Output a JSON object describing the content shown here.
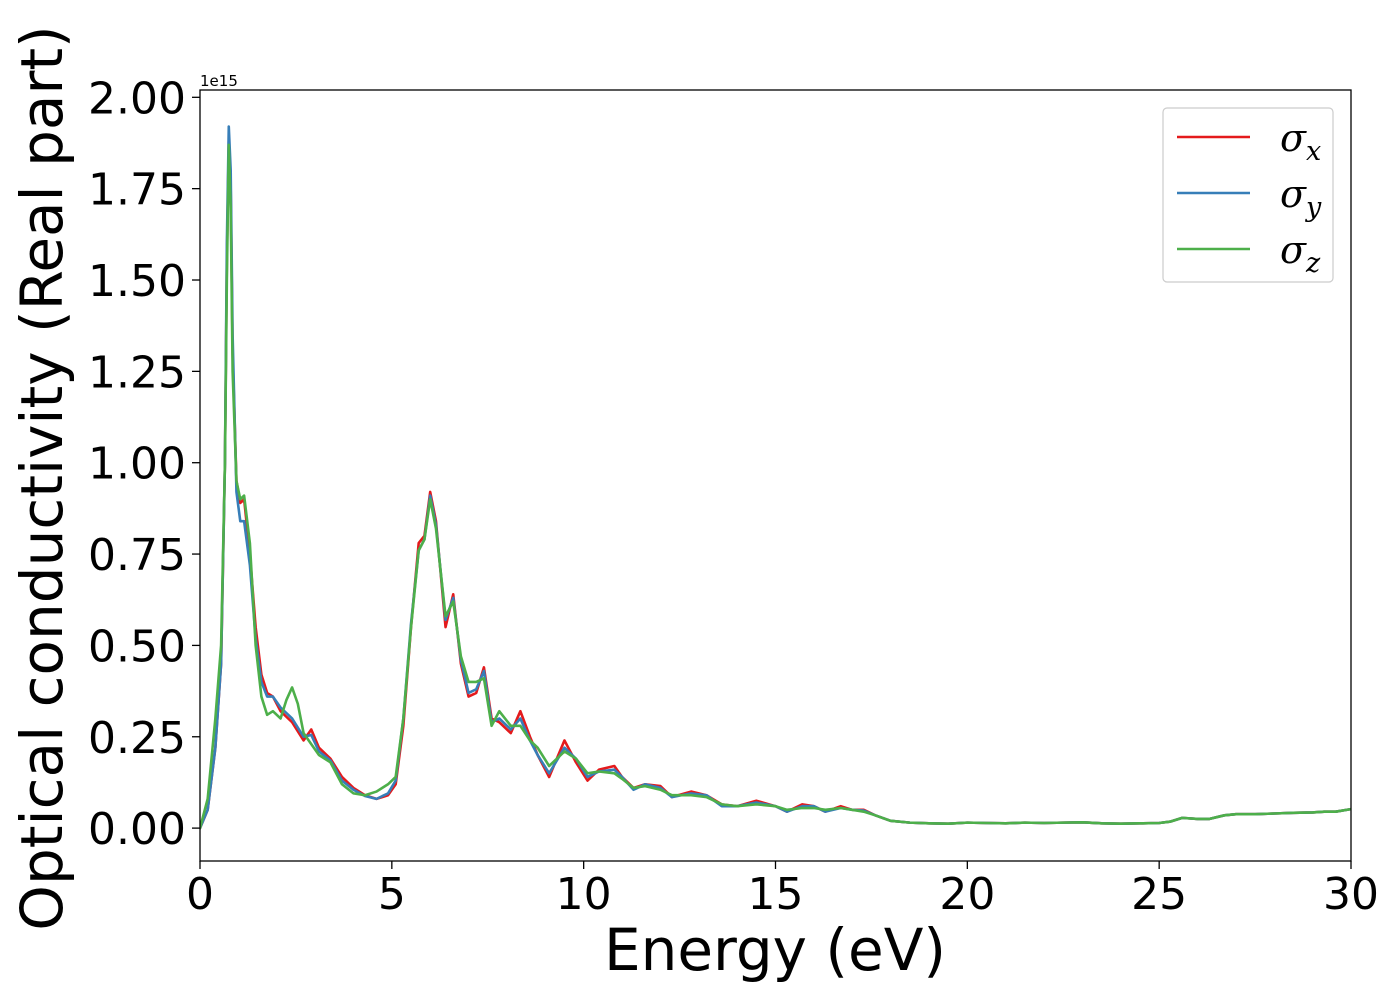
{
  "chart_data": {
    "type": "line",
    "xlabel": "Energy (eV)",
    "ylabel": "Optical conductivity (Real part)",
    "y_offset_label": "1e15",
    "xlim": [
      0,
      30
    ],
    "ylim": [
      -0.09,
      2.02
    ],
    "x_ticks": [
      0,
      5,
      10,
      15,
      20,
      25,
      30
    ],
    "x_tick_labels": [
      "0",
      "5",
      "10",
      "15",
      "20",
      "25",
      "30"
    ],
    "y_ticks": [
      0,
      0.25,
      0.5,
      0.75,
      1.0,
      1.25,
      1.5,
      1.75,
      2.0
    ],
    "y_tick_labels": [
      "0.00",
      "0.25",
      "0.50",
      "0.75",
      "1.00",
      "1.25",
      "1.50",
      "1.75",
      "2.00"
    ],
    "grid": false,
    "legend_position": "top-right",
    "series": [
      {
        "name": "σx",
        "legend": {
          "base": "σ",
          "sub": "x"
        },
        "color": "#e41a1c",
        "points": [
          [
            0,
            0
          ],
          [
            0.2,
            0.05
          ],
          [
            0.4,
            0.22
          ],
          [
            0.55,
            0.45
          ],
          [
            0.65,
            1.0
          ],
          [
            0.7,
            1.55
          ],
          [
            0.75,
            1.88
          ],
          [
            0.8,
            1.75
          ],
          [
            0.85,
            1.3
          ],
          [
            0.95,
            0.95
          ],
          [
            1.05,
            0.89
          ],
          [
            1.15,
            0.9
          ],
          [
            1.3,
            0.75
          ],
          [
            1.45,
            0.55
          ],
          [
            1.6,
            0.42
          ],
          [
            1.75,
            0.37
          ],
          [
            1.9,
            0.36
          ],
          [
            2.1,
            0.32
          ],
          [
            2.4,
            0.29
          ],
          [
            2.7,
            0.24
          ],
          [
            2.9,
            0.27
          ],
          [
            3.1,
            0.22
          ],
          [
            3.4,
            0.19
          ],
          [
            3.7,
            0.14
          ],
          [
            4.0,
            0.11
          ],
          [
            4.3,
            0.09
          ],
          [
            4.6,
            0.08
          ],
          [
            4.9,
            0.09
          ],
          [
            5.1,
            0.12
          ],
          [
            5.3,
            0.28
          ],
          [
            5.5,
            0.55
          ],
          [
            5.7,
            0.78
          ],
          [
            5.85,
            0.8
          ],
          [
            6.0,
            0.92
          ],
          [
            6.15,
            0.84
          ],
          [
            6.4,
            0.55
          ],
          [
            6.6,
            0.64
          ],
          [
            6.8,
            0.45
          ],
          [
            7.0,
            0.36
          ],
          [
            7.2,
            0.37
          ],
          [
            7.4,
            0.44
          ],
          [
            7.6,
            0.3
          ],
          [
            7.8,
            0.29
          ],
          [
            8.1,
            0.26
          ],
          [
            8.35,
            0.32
          ],
          [
            8.6,
            0.25
          ],
          [
            8.8,
            0.2
          ],
          [
            9.1,
            0.14
          ],
          [
            9.5,
            0.24
          ],
          [
            9.8,
            0.18
          ],
          [
            10.1,
            0.13
          ],
          [
            10.4,
            0.16
          ],
          [
            10.8,
            0.17
          ],
          [
            11.0,
            0.14
          ],
          [
            11.3,
            0.11
          ],
          [
            11.6,
            0.12
          ],
          [
            12.0,
            0.115
          ],
          [
            12.3,
            0.085
          ],
          [
            12.8,
            0.1
          ],
          [
            13.2,
            0.09
          ],
          [
            13.6,
            0.065
          ],
          [
            14.0,
            0.06
          ],
          [
            14.5,
            0.075
          ],
          [
            15.0,
            0.06
          ],
          [
            15.3,
            0.045
          ],
          [
            15.7,
            0.065
          ],
          [
            16.0,
            0.06
          ],
          [
            16.3,
            0.045
          ],
          [
            16.7,
            0.06
          ],
          [
            17.0,
            0.05
          ],
          [
            17.3,
            0.05
          ],
          [
            17.6,
            0.035
          ],
          [
            18.0,
            0.02
          ],
          [
            18.5,
            0.015
          ],
          [
            19.0,
            0.013
          ],
          [
            19.5,
            0.012
          ],
          [
            20.0,
            0.015
          ],
          [
            20.5,
            0.014
          ],
          [
            21.0,
            0.013
          ],
          [
            21.5,
            0.015
          ],
          [
            22.0,
            0.014
          ],
          [
            22.5,
            0.015
          ],
          [
            23.0,
            0.016
          ],
          [
            23.5,
            0.013
          ],
          [
            24.0,
            0.012
          ],
          [
            24.5,
            0.013
          ],
          [
            25.0,
            0.014
          ],
          [
            25.3,
            0.018
          ],
          [
            25.6,
            0.028
          ],
          [
            26.0,
            0.025
          ],
          [
            26.3,
            0.025
          ],
          [
            26.7,
            0.035
          ],
          [
            27.0,
            0.038
          ],
          [
            27.5,
            0.038
          ],
          [
            28.0,
            0.04
          ],
          [
            28.5,
            0.042
          ],
          [
            29.0,
            0.043
          ],
          [
            29.3,
            0.045
          ],
          [
            29.6,
            0.045
          ],
          [
            30.0,
            0.052
          ]
        ]
      },
      {
        "name": "σy",
        "legend": {
          "base": "σ",
          "sub": "y"
        },
        "color": "#377eb8",
        "points": [
          [
            0,
            0
          ],
          [
            0.2,
            0.05
          ],
          [
            0.4,
            0.22
          ],
          [
            0.55,
            0.45
          ],
          [
            0.65,
            1.0
          ],
          [
            0.7,
            1.6
          ],
          [
            0.75,
            1.92
          ],
          [
            0.8,
            1.8
          ],
          [
            0.85,
            1.35
          ],
          [
            0.95,
            0.92
          ],
          [
            1.05,
            0.84
          ],
          [
            1.15,
            0.84
          ],
          [
            1.3,
            0.72
          ],
          [
            1.45,
            0.52
          ],
          [
            1.6,
            0.4
          ],
          [
            1.75,
            0.36
          ],
          [
            1.9,
            0.36
          ],
          [
            2.1,
            0.33
          ],
          [
            2.4,
            0.3
          ],
          [
            2.7,
            0.25
          ],
          [
            2.9,
            0.255
          ],
          [
            3.1,
            0.21
          ],
          [
            3.4,
            0.185
          ],
          [
            3.7,
            0.13
          ],
          [
            4.0,
            0.105
          ],
          [
            4.3,
            0.088
          ],
          [
            4.6,
            0.08
          ],
          [
            4.9,
            0.095
          ],
          [
            5.1,
            0.13
          ],
          [
            5.3,
            0.3
          ],
          [
            5.5,
            0.56
          ],
          [
            5.7,
            0.76
          ],
          [
            5.85,
            0.79
          ],
          [
            6.0,
            0.91
          ],
          [
            6.15,
            0.83
          ],
          [
            6.4,
            0.57
          ],
          [
            6.6,
            0.63
          ],
          [
            6.8,
            0.46
          ],
          [
            7.0,
            0.37
          ],
          [
            7.2,
            0.38
          ],
          [
            7.4,
            0.43
          ],
          [
            7.6,
            0.29
          ],
          [
            7.8,
            0.3
          ],
          [
            8.1,
            0.27
          ],
          [
            8.35,
            0.3
          ],
          [
            8.6,
            0.24
          ],
          [
            8.8,
            0.2
          ],
          [
            9.1,
            0.15
          ],
          [
            9.5,
            0.22
          ],
          [
            9.8,
            0.19
          ],
          [
            10.1,
            0.14
          ],
          [
            10.4,
            0.155
          ],
          [
            10.8,
            0.16
          ],
          [
            11.0,
            0.14
          ],
          [
            11.3,
            0.105
          ],
          [
            11.6,
            0.12
          ],
          [
            12.0,
            0.11
          ],
          [
            12.3,
            0.085
          ],
          [
            12.8,
            0.095
          ],
          [
            13.2,
            0.09
          ],
          [
            13.6,
            0.06
          ],
          [
            14.0,
            0.06
          ],
          [
            14.5,
            0.07
          ],
          [
            15.0,
            0.06
          ],
          [
            15.3,
            0.045
          ],
          [
            15.7,
            0.06
          ],
          [
            16.0,
            0.06
          ],
          [
            16.3,
            0.045
          ],
          [
            16.7,
            0.055
          ],
          [
            17.0,
            0.05
          ],
          [
            17.3,
            0.048
          ],
          [
            17.6,
            0.035
          ],
          [
            18.0,
            0.02
          ],
          [
            18.5,
            0.015
          ],
          [
            19.0,
            0.013
          ],
          [
            19.5,
            0.012
          ],
          [
            20.0,
            0.015
          ],
          [
            20.5,
            0.014
          ],
          [
            21.0,
            0.013
          ],
          [
            21.5,
            0.015
          ],
          [
            22.0,
            0.014
          ],
          [
            22.5,
            0.015
          ],
          [
            23.0,
            0.016
          ],
          [
            23.5,
            0.013
          ],
          [
            24.0,
            0.012
          ],
          [
            24.5,
            0.013
          ],
          [
            25.0,
            0.014
          ],
          [
            25.3,
            0.018
          ],
          [
            25.6,
            0.028
          ],
          [
            26.0,
            0.025
          ],
          [
            26.3,
            0.025
          ],
          [
            26.7,
            0.035
          ],
          [
            27.0,
            0.038
          ],
          [
            27.5,
            0.038
          ],
          [
            28.0,
            0.04
          ],
          [
            28.5,
            0.042
          ],
          [
            29.0,
            0.043
          ],
          [
            29.3,
            0.045
          ],
          [
            29.6,
            0.045
          ],
          [
            30.0,
            0.052
          ]
        ]
      },
      {
        "name": "σz",
        "legend": {
          "base": "σ",
          "sub": "z"
        },
        "color": "#4daf4a",
        "points": [
          [
            0,
            0
          ],
          [
            0.2,
            0.08
          ],
          [
            0.4,
            0.3
          ],
          [
            0.55,
            0.5
          ],
          [
            0.65,
            1.0
          ],
          [
            0.7,
            1.5
          ],
          [
            0.75,
            1.87
          ],
          [
            0.8,
            1.7
          ],
          [
            0.85,
            1.25
          ],
          [
            0.95,
            0.95
          ],
          [
            1.05,
            0.9
          ],
          [
            1.15,
            0.91
          ],
          [
            1.3,
            0.78
          ],
          [
            1.45,
            0.5
          ],
          [
            1.6,
            0.36
          ],
          [
            1.75,
            0.31
          ],
          [
            1.9,
            0.32
          ],
          [
            2.1,
            0.3
          ],
          [
            2.25,
            0.35
          ],
          [
            2.4,
            0.385
          ],
          [
            2.55,
            0.34
          ],
          [
            2.7,
            0.26
          ],
          [
            2.9,
            0.23
          ],
          [
            3.1,
            0.2
          ],
          [
            3.4,
            0.18
          ],
          [
            3.7,
            0.12
          ],
          [
            4.0,
            0.095
          ],
          [
            4.3,
            0.09
          ],
          [
            4.6,
            0.1
          ],
          [
            4.9,
            0.12
          ],
          [
            5.1,
            0.14
          ],
          [
            5.3,
            0.3
          ],
          [
            5.5,
            0.55
          ],
          [
            5.7,
            0.76
          ],
          [
            5.85,
            0.79
          ],
          [
            6.0,
            0.9
          ],
          [
            6.15,
            0.82
          ],
          [
            6.4,
            0.58
          ],
          [
            6.6,
            0.62
          ],
          [
            6.8,
            0.47
          ],
          [
            7.0,
            0.4
          ],
          [
            7.2,
            0.4
          ],
          [
            7.4,
            0.41
          ],
          [
            7.6,
            0.28
          ],
          [
            7.8,
            0.32
          ],
          [
            8.1,
            0.28
          ],
          [
            8.35,
            0.28
          ],
          [
            8.6,
            0.24
          ],
          [
            8.8,
            0.22
          ],
          [
            9.1,
            0.17
          ],
          [
            9.5,
            0.21
          ],
          [
            9.8,
            0.19
          ],
          [
            10.1,
            0.15
          ],
          [
            10.4,
            0.155
          ],
          [
            10.8,
            0.15
          ],
          [
            11.0,
            0.135
          ],
          [
            11.3,
            0.11
          ],
          [
            11.6,
            0.115
          ],
          [
            12.0,
            0.105
          ],
          [
            12.3,
            0.09
          ],
          [
            12.8,
            0.09
          ],
          [
            13.2,
            0.085
          ],
          [
            13.6,
            0.065
          ],
          [
            14.0,
            0.06
          ],
          [
            14.5,
            0.065
          ],
          [
            15.0,
            0.06
          ],
          [
            15.3,
            0.05
          ],
          [
            15.7,
            0.055
          ],
          [
            16.0,
            0.055
          ],
          [
            16.3,
            0.05
          ],
          [
            16.7,
            0.055
          ],
          [
            17.0,
            0.05
          ],
          [
            17.3,
            0.045
          ],
          [
            17.6,
            0.035
          ],
          [
            18.0,
            0.02
          ],
          [
            18.5,
            0.015
          ],
          [
            19.0,
            0.013
          ],
          [
            19.5,
            0.012
          ],
          [
            20.0,
            0.015
          ],
          [
            20.5,
            0.014
          ],
          [
            21.0,
            0.013
          ],
          [
            21.5,
            0.015
          ],
          [
            22.0,
            0.014
          ],
          [
            22.5,
            0.015
          ],
          [
            23.0,
            0.016
          ],
          [
            23.5,
            0.013
          ],
          [
            24.0,
            0.012
          ],
          [
            24.5,
            0.013
          ],
          [
            25.0,
            0.014
          ],
          [
            25.3,
            0.018
          ],
          [
            25.6,
            0.028
          ],
          [
            26.0,
            0.025
          ],
          [
            26.3,
            0.025
          ],
          [
            26.7,
            0.035
          ],
          [
            27.0,
            0.038
          ],
          [
            27.5,
            0.038
          ],
          [
            28.0,
            0.04
          ],
          [
            28.5,
            0.042
          ],
          [
            29.0,
            0.043
          ],
          [
            29.3,
            0.045
          ],
          [
            29.6,
            0.045
          ],
          [
            30.0,
            0.052
          ]
        ]
      }
    ]
  }
}
